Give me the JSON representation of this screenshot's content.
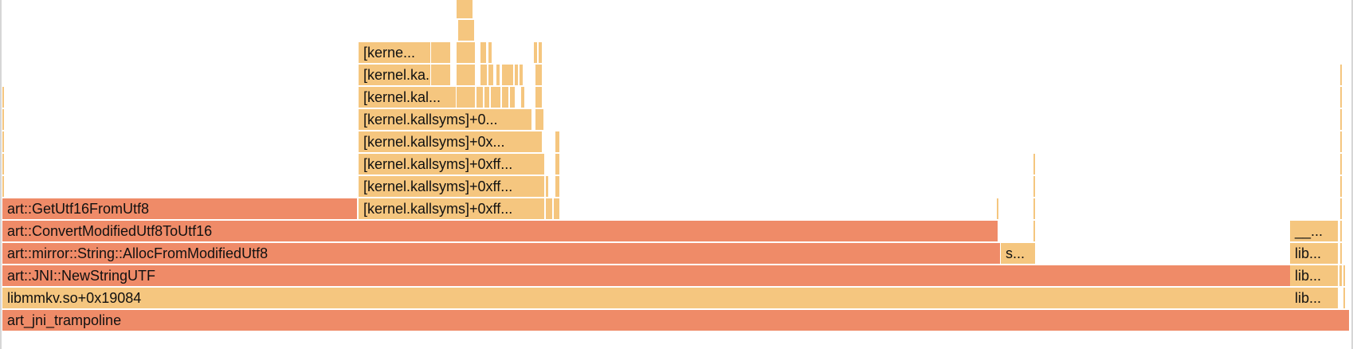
{
  "colors": {
    "hot": "#ef8b68",
    "warm": "#f5c67f",
    "background": "#ffffff"
  },
  "frames": [
    {
      "label": "art_jni_trampoline",
      "shade": "hot"
    },
    {
      "label": "libmmkv.so+0x19084",
      "shade": "warm"
    },
    {
      "label": "lib...",
      "shade": "warm"
    },
    {
      "label": "art::JNI::NewStringUTF",
      "shade": "hot"
    },
    {
      "label": "lib...",
      "shade": "warm"
    },
    {
      "label": "art::mirror::String::AllocFromModifiedUtf8",
      "shade": "hot"
    },
    {
      "label": "s...",
      "shade": "warm"
    },
    {
      "label": "lib...",
      "shade": "warm"
    },
    {
      "label": "art::ConvertModifiedUtf8ToUtf16",
      "shade": "hot"
    },
    {
      "label": "__...",
      "shade": "warm"
    },
    {
      "label": "art::GetUtf16FromUtf8",
      "shade": "hot"
    },
    {
      "label": "[kernel.kallsyms]+0xff...",
      "shade": "warm"
    },
    {
      "label": "[kernel.kallsyms]+0xff...",
      "shade": "warm"
    },
    {
      "label": "[kernel.kallsyms]+0xff...",
      "shade": "warm"
    },
    {
      "label": "[kernel.kallsyms]+0x...",
      "shade": "warm"
    },
    {
      "label": "[kernel.kallsyms]+0...",
      "shade": "warm"
    },
    {
      "label": "[kernel.kal...",
      "shade": "warm"
    },
    {
      "label": "[kernel.ka...",
      "shade": "warm"
    },
    {
      "label": "[kerne...",
      "shade": "warm"
    }
  ]
}
